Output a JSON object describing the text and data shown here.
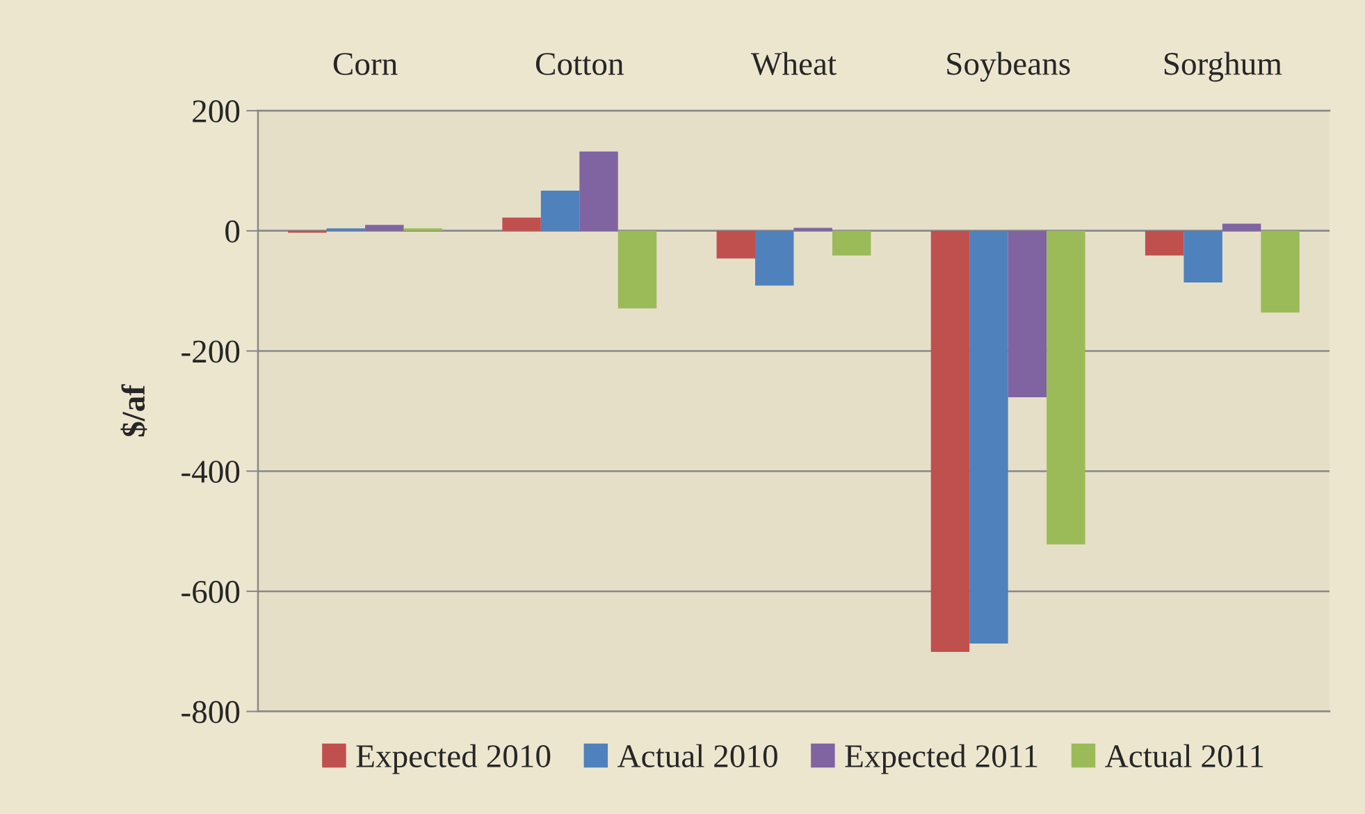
{
  "chart_data": {
    "type": "bar",
    "ylabel": "$/af",
    "categories": [
      "Corn",
      "Cotton",
      "Wheat",
      "Soybeans",
      "Sorghum"
    ],
    "series": [
      {
        "name": "Expected 2010",
        "color": "#c0504d",
        "values": [
          -3,
          22,
          -46,
          -701,
          -41
        ]
      },
      {
        "name": "Actual 2010",
        "color": "#4f81bd",
        "values": [
          4,
          67,
          -91,
          -687,
          -86
        ]
      },
      {
        "name": "Expected 2011",
        "color": "#8064a2",
        "values": [
          10,
          132,
          5,
          -277,
          12
        ]
      },
      {
        "name": "Actual 2011",
        "color": "#9bbb59",
        "values": [
          4,
          -129,
          -41,
          -522,
          -136
        ]
      }
    ],
    "ylim": [
      -800,
      200
    ],
    "yticks": [
      {
        "value": -800,
        "label": "-800"
      },
      {
        "value": -600,
        "label": "-600"
      },
      {
        "value": -400,
        "label": "-400"
      },
      {
        "value": -200,
        "label": "-200"
      },
      0,
      200
    ],
    "grid": "y",
    "legend": "bottom"
  }
}
